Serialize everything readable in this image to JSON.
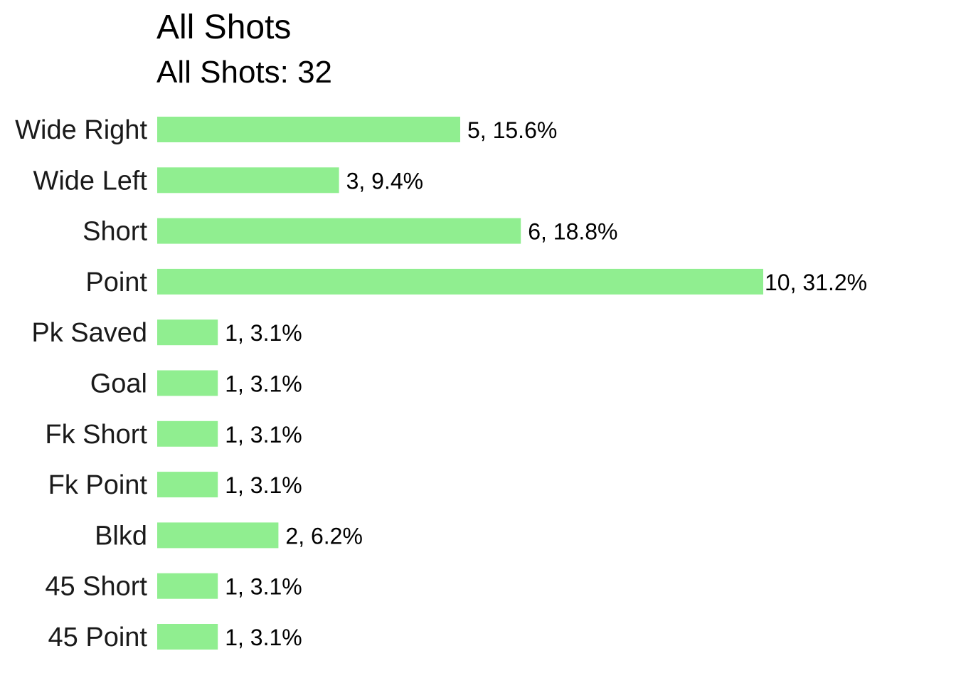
{
  "chart_data": {
    "type": "bar",
    "orientation": "horizontal",
    "title": "All Shots",
    "subtitle": "All Shots: 32",
    "categories": [
      "Wide Right",
      "Wide Left",
      "Short",
      "Point",
      "Pk Saved",
      "Goal",
      "Fk Short",
      "Fk Point",
      "Blkd",
      "45 Short",
      "45 Point"
    ],
    "values": [
      5,
      3,
      6,
      10,
      1,
      1,
      1,
      1,
      2,
      1,
      1
    ],
    "data_labels": [
      "5, 15.6%",
      "3, 9.4%",
      "6, 18.8%",
      "10, 31.2%",
      "1, 3.1%",
      "1, 3.1%",
      "1, 3.1%",
      "1, 3.1%",
      "2, 6.2%",
      "1, 3.1%",
      "1, 3.1%"
    ],
    "xlim": [
      0,
      10
    ],
    "bar_color": "#90EE90",
    "grid": false,
    "legend": "none"
  }
}
